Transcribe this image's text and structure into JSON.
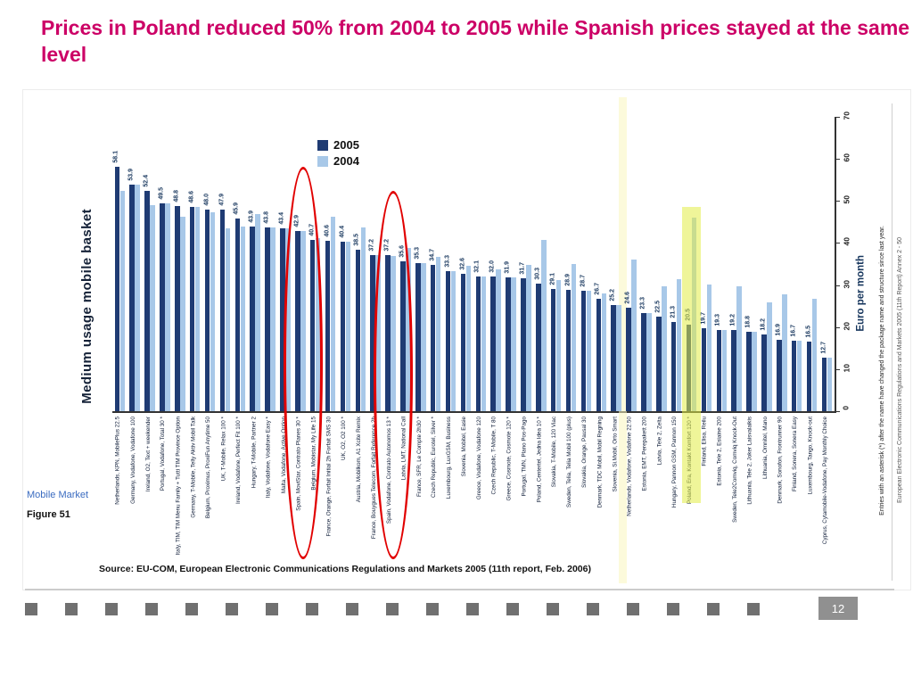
{
  "slide": {
    "title": "Prices in Poland reduced 50% from 2004 to 2005 while Spanish prices stayed at the same level",
    "source": "Source: EU-COM, European Electronic Communications Regulations and  Markets 2005  (11th report, Feb. 2006)",
    "page_number": "12"
  },
  "figure": {
    "section": "Mobile Market",
    "label": "Figure 51",
    "note_inner": "Entries with an asterisk (*) after the name have changed the package name and structure since last year.",
    "note_outer": "European Electronic Communications Regulations and Markets 2005 (11th Report) Annex 2 - 50"
  },
  "colors": {
    "title": "#cc0066",
    "bar_2005": "#1f3b73",
    "bar_2004": "#a8c8e8",
    "highlight": "#e2ec46",
    "circle": "#e10000"
  },
  "chart_data": {
    "type": "bar",
    "title": "Medium usage mobile basket",
    "ylabel": "Euro per month",
    "ylim": [
      0,
      70
    ],
    "yticks": [
      0,
      10,
      20,
      30,
      40,
      50,
      60,
      70
    ],
    "grid": false,
    "legend_position": "top-left-inside",
    "rotated_90": true,
    "categories": [
      "Netherlands, KPN, MobilePlus 22.5",
      "Germany, Vodafone, Vodafone 100",
      "Ireland, O2, Text + weekender",
      "Portugal, Vodafone, Total 30 *",
      "Italy, TIM, TIM Menu Family + Tutti TIM Province Option",
      "Germany, T-Mobile, Telly Aktiv Mobil Talk",
      "Belgium, Proximus, ProxiFun Anytime 50",
      "UK, T-Mobile, Relax 100 *",
      "Ireland, Vodafone, Perfect Fit 100 *",
      "Hungary, T-Mobile, Partner 2",
      "Italy, Vodafone, Vodafone Easy *",
      "Malta, Vodafone, Active Option",
      "Spain, MoviStar, Contrato Planes 30 *",
      "Belgium, Mobistar, My Life 15",
      "France, Orange, Forfait Initial 2h Forfait SMS 30",
      "UK, O2, O2 100 *",
      "Austria, Mobilkom, A1 Xcite Remix",
      "France, Bouygues Telecom, Forfait Reference 2h",
      "Spain, Vodafone, Contrato Autonomos 13 *",
      "Latvia, LMT, National Call",
      "France, SFR, Le Compte 2h30 *",
      "Czech Republic, Eurotel, Silver *",
      "Luxembourg, LuxGSM, Business",
      "Slovenia, Mobitel, Easie",
      "Greece, Vodafone, Vodafone 120",
      "Czech Republic, T-Mobile, T 80",
      "Greece, Cosmote, Cosmote 120 *",
      "Portugal, TMN, Plano Pos-Pago",
      "Poland, Centertel, Jedna Idea 10 *",
      "Slovakia, T-Mobile, 120 Viac",
      "Sweden, Telia, Telia Mobil 100 (plus)",
      "Slovakia, Orange, Pausal 30",
      "Denmark, TDC Mobil, Mobil Regning",
      "Slovenia, Si.Mobil, Orto Smart",
      "Netherlands, Vodafone, Vodafone 22.50",
      "Estonia, EMT, Perepakett 200",
      "Latvia, Tele 2, Zelta",
      "Hungary, Pannon GSM, Pannon 150",
      "Poland, Era, Kontakt Komfort 120 *",
      "Finland, Elisa, Reilu",
      "Estonia, Tele 2, Esiaine 200",
      "Sweden, Tele2Comviq, Comviq Knock-Out",
      "Lithuania, Tele 2, Joker Laisvalaikis",
      "Lithuania, Omnitel, Mano",
      "Denmark, Sonofon, Frontrunner 90",
      "Finland, Sonera, Sonera Easy",
      "Luxembourg, Tango, Knock-out",
      "Cyprus, Cytamobile-Vodafone, Pay Monthly Choice"
    ],
    "series": [
      {
        "name": "2005",
        "color": "#1f3b73",
        "values": [
          58.1,
          53.9,
          52.4,
          49.5,
          48.8,
          48.6,
          48.0,
          47.9,
          45.9,
          43.9,
          43.8,
          43.4,
          42.9,
          40.7,
          40.6,
          40.4,
          38.5,
          37.2,
          37.2,
          35.6,
          35.3,
          34.7,
          33.3,
          32.6,
          32.1,
          32.0,
          31.9,
          31.7,
          30.3,
          29.1,
          28.9,
          28.7,
          26.7,
          25.2,
          24.6,
          23.3,
          22.5,
          21.3,
          20.5,
          19.7,
          19.3,
          19.2,
          18.8,
          18.2,
          16.9,
          16.7,
          16.5,
          12.7
        ]
      },
      {
        "name": "2004",
        "color": "#a8c8e8",
        "values": [
          52.3,
          53.9,
          49.0,
          49.5,
          46.2,
          48.6,
          47.2,
          43.5,
          44.0,
          46.8,
          43.8,
          43.4,
          42.9,
          41.2,
          46.3,
          40.4,
          43.6,
          37.2,
          37.0,
          38.8,
          35.3,
          36.8,
          33.3,
          34.6,
          32.1,
          33.8,
          31.9,
          34.8,
          40.8,
          31.2,
          34.9,
          28.7,
          28.1,
          25.2,
          36.1,
          23.3,
          29.6,
          31.4,
          46.0,
          30.2,
          19.3,
          29.8,
          18.8,
          25.9,
          27.8,
          16.7,
          26.8,
          12.7
        ]
      }
    ],
    "annotations": {
      "red_circled_indices": [
        12,
        18
      ],
      "red_circled_labels": [
        "Spain, MoviStar, Contrato Planes 30 *",
        "Spain, Vodafone, Contrato Autonomos 13 *"
      ],
      "highlighted_index": 38,
      "highlighted_label": "Poland, Era, Kontakt Komfort 120 *"
    }
  },
  "footer": {
    "squares_count": 19
  }
}
